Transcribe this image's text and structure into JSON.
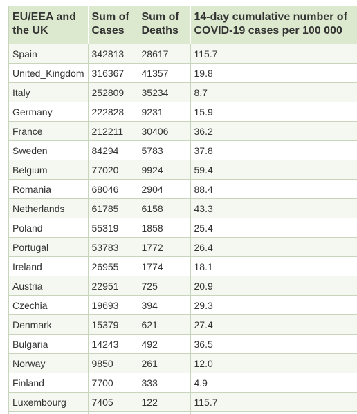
{
  "table": {
    "headers": [
      "EU/EEA and the UK",
      "Sum of Cases",
      "Sum of Deaths",
      "14-day cumulative number of COVID-19 cases per 100 000"
    ],
    "rows": [
      [
        "Spain",
        "342813",
        "28617",
        "115.7"
      ],
      [
        "United_Kingdom",
        "316367",
        "41357",
        "19.8"
      ],
      [
        "Italy",
        "252809",
        "35234",
        "8.7"
      ],
      [
        "Germany",
        "222828",
        "9231",
        "15.9"
      ],
      [
        "France",
        "212211",
        "30406",
        "36.2"
      ],
      [
        "Sweden",
        "84294",
        "5783",
        "37.8"
      ],
      [
        "Belgium",
        "77020",
        "9924",
        "59.4"
      ],
      [
        "Romania",
        "68046",
        "2904",
        "88.4"
      ],
      [
        "Netherlands",
        "61785",
        "6158",
        "43.3"
      ],
      [
        "Poland",
        "55319",
        "1858",
        "25.4"
      ],
      [
        "Portugal",
        "53783",
        "1772",
        "26.4"
      ],
      [
        "Ireland",
        "26955",
        "1774",
        "18.1"
      ],
      [
        "Austria",
        "22951",
        "725",
        "20.9"
      ],
      [
        "Czechia",
        "19693",
        "394",
        "29.3"
      ],
      [
        "Denmark",
        "15379",
        "621",
        "27.4"
      ],
      [
        "Bulgaria",
        "14243",
        "492",
        "36.5"
      ],
      [
        "Norway",
        "9850",
        "261",
        "12.0"
      ],
      [
        "Finland",
        "7700",
        "333",
        "4.9"
      ],
      [
        "Luxembourg",
        "7405",
        "122",
        "115.7"
      ]
    ]
  }
}
